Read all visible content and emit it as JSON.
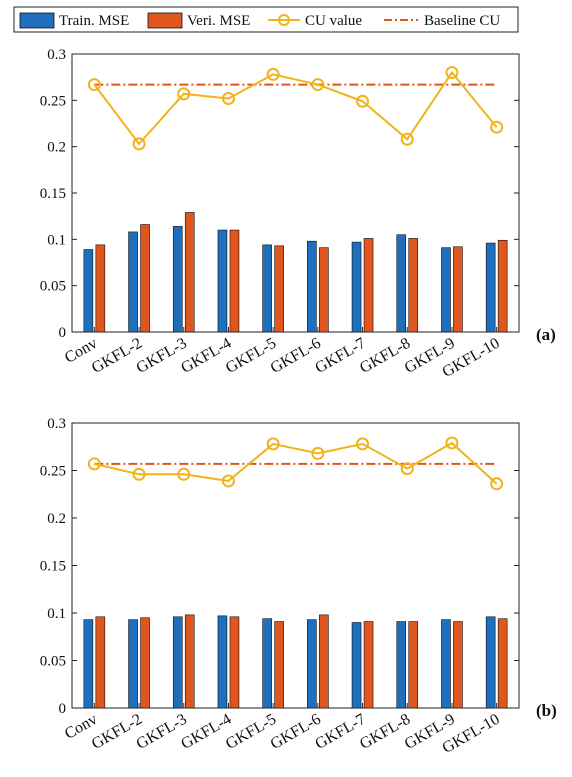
{
  "legend": {
    "items": [
      {
        "label": "Train. MSE",
        "kind": "bar",
        "color": "#1f6fbf"
      },
      {
        "label": "Veri. MSE",
        "kind": "bar",
        "color": "#e0561f"
      },
      {
        "label": "CU value",
        "kind": "line-marker",
        "color": "#f2b21b"
      },
      {
        "label": "Baseline CU",
        "kind": "dashdot",
        "color": "#e0561f"
      }
    ]
  },
  "chart_data": [
    {
      "type": "bar",
      "panel_label": "(a)",
      "categories": [
        "Conv",
        "GKFL-2",
        "GKFL-3",
        "GKFL-4",
        "GKFL-5",
        "GKFL-6",
        "GKFL-7",
        "GKFL-8",
        "GKFL-9",
        "GKFL-10"
      ],
      "ylim": [
        0,
        0.3
      ],
      "yticks": [
        "0",
        "0.05",
        "0.1",
        "0.15",
        "0.2",
        "0.25",
        "0.3"
      ],
      "series": [
        {
          "name": "Train. MSE",
          "type": "bar",
          "values": [
            0.089,
            0.108,
            0.114,
            0.11,
            0.094,
            0.098,
            0.097,
            0.105,
            0.091,
            0.096
          ]
        },
        {
          "name": "Veri. MSE",
          "type": "bar",
          "values": [
            0.094,
            0.116,
            0.129,
            0.11,
            0.093,
            0.091,
            0.101,
            0.101,
            0.092,
            0.099
          ]
        },
        {
          "name": "CU value",
          "type": "line",
          "values": [
            0.267,
            0.203,
            0.257,
            0.252,
            0.278,
            0.267,
            0.249,
            0.208,
            0.28,
            0.221
          ]
        },
        {
          "name": "Baseline CU",
          "type": "line",
          "values": [
            0.267,
            0.267,
            0.267,
            0.267,
            0.267,
            0.267,
            0.267,
            0.267,
            0.267,
            0.267
          ]
        }
      ],
      "grid": false
    },
    {
      "type": "bar",
      "panel_label": "(b)",
      "categories": [
        "Conv",
        "GKFL-2",
        "GKFL-3",
        "GKFL-4",
        "GKFL-5",
        "GKFL-6",
        "GKFL-7",
        "GKFL-8",
        "GKFL-9",
        "GKFL-10"
      ],
      "ylim": [
        0,
        0.3
      ],
      "yticks": [
        "0",
        "0.05",
        "0.1",
        "0.15",
        "0.2",
        "0.25",
        "0.3"
      ],
      "series": [
        {
          "name": "Train. MSE",
          "type": "bar",
          "values": [
            0.093,
            0.093,
            0.096,
            0.097,
            0.094,
            0.093,
            0.09,
            0.091,
            0.093,
            0.096
          ]
        },
        {
          "name": "Veri. MSE",
          "type": "bar",
          "values": [
            0.096,
            0.095,
            0.098,
            0.096,
            0.091,
            0.098,
            0.091,
            0.091,
            0.091,
            0.094
          ]
        },
        {
          "name": "CU value",
          "type": "line",
          "values": [
            0.257,
            0.246,
            0.246,
            0.239,
            0.278,
            0.268,
            0.278,
            0.252,
            0.279,
            0.236
          ]
        },
        {
          "name": "Baseline CU",
          "type": "line",
          "values": [
            0.257,
            0.257,
            0.257,
            0.257,
            0.257,
            0.257,
            0.257,
            0.257,
            0.257,
            0.257
          ]
        }
      ],
      "grid": false
    }
  ]
}
